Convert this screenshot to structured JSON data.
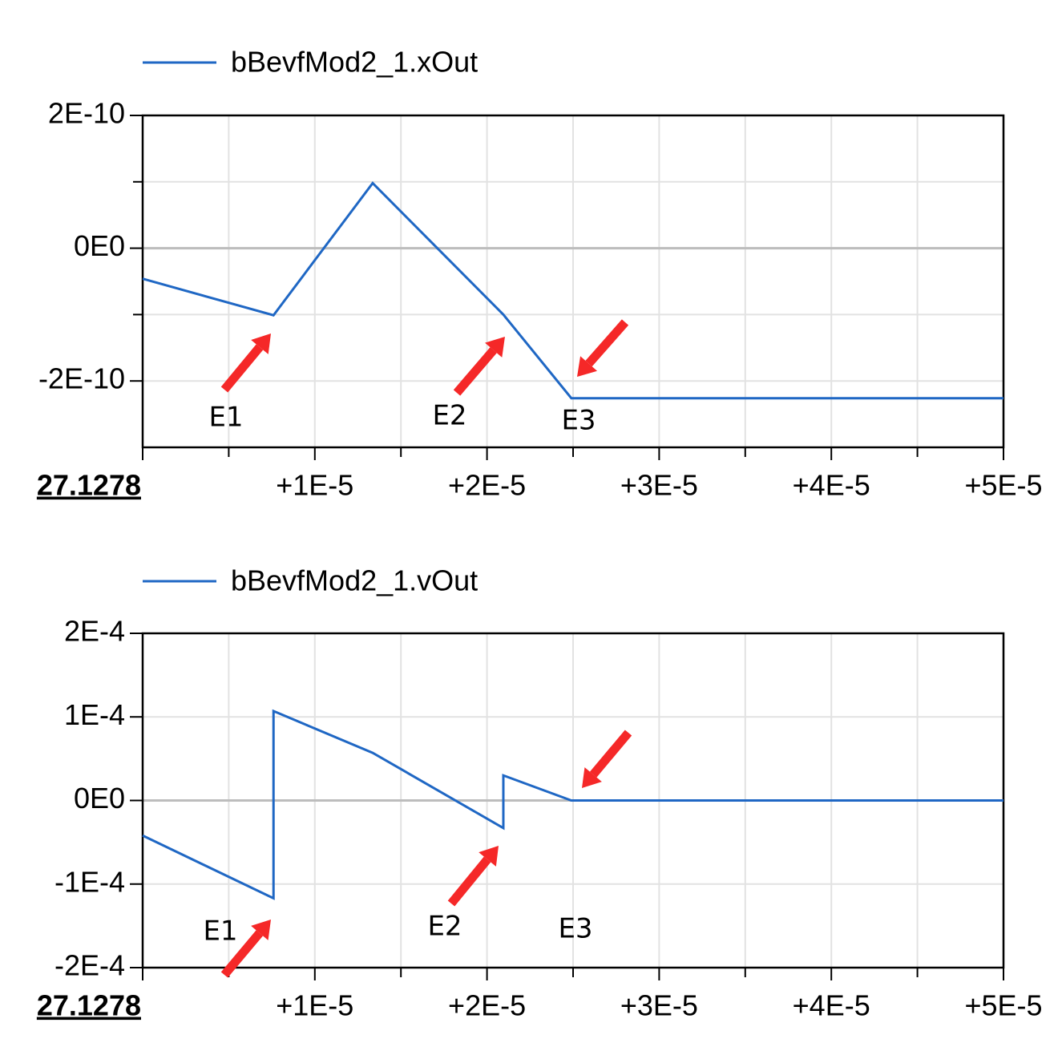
{
  "chart_data": [
    {
      "type": "line",
      "series": [
        {
          "name": "bBevfMod2_1.xOut",
          "color": "#1f67c4",
          "values": [
            -4.6e-11,
            -1.01e-10,
            9.8e-11,
            -1e-10,
            -2.26e-10,
            -2.26e-10
          ]
        }
      ],
      "x": [
        0,
        7.6e-06,
        1.336e-05,
        2.095e-05,
        2.49e-05,
        5e-05
      ],
      "xlim": [
        0,
        5e-05
      ],
      "ylim": [
        -3e-10,
        2e-10
      ],
      "xticks": [
        {
          "value": 0,
          "label": "27.1278"
        },
        {
          "value": 1e-05,
          "label": "+1E-5"
        },
        {
          "value": 2e-05,
          "label": "+2E-5"
        },
        {
          "value": 3e-05,
          "label": "+3E-5"
        },
        {
          "value": 4e-05,
          "label": "+4E-5"
        },
        {
          "value": 5e-05,
          "label": "+5E-5"
        }
      ],
      "yticks": [
        {
          "value": 2e-10,
          "label": "2E-10"
        },
        {
          "value": 0,
          "label": "0E0"
        },
        {
          "value": -2e-10,
          "label": "-2E-10"
        }
      ],
      "x_minor_ticks": [
        5e-06,
        1.5e-05,
        2.5e-05,
        3.5e-05,
        4.5e-05
      ],
      "y_minor_ticks": [
        1e-10,
        -1e-10
      ],
      "grid": true,
      "annotations": [
        "E1",
        "E2",
        "E3"
      ]
    },
    {
      "type": "line",
      "series": [
        {
          "name": "bBevfMod2_1.vOut",
          "color": "#1f67c4",
          "values": [
            -4.2e-05,
            -0.000117,
            0.000107,
            5.7e-05,
            -3.3e-05,
            3e-05,
            0,
            0
          ]
        }
      ],
      "x": [
        0,
        7.6e-06,
        7.6e-06,
        1.336e-05,
        2.095e-05,
        2.095e-05,
        2.49e-05,
        5e-05
      ],
      "xlim": [
        0,
        5e-05
      ],
      "ylim": [
        -0.0002,
        0.0002
      ],
      "xticks": [
        {
          "value": 0,
          "label": "27.1278"
        },
        {
          "value": 1e-05,
          "label": "+1E-5"
        },
        {
          "value": 2e-05,
          "label": "+2E-5"
        },
        {
          "value": 3e-05,
          "label": "+3E-5"
        },
        {
          "value": 4e-05,
          "label": "+4E-5"
        },
        {
          "value": 5e-05,
          "label": "+5E-5"
        }
      ],
      "yticks": [
        {
          "value": 0.0002,
          "label": "2E-4"
        },
        {
          "value": 0.0001,
          "label": "1E-4"
        },
        {
          "value": 0,
          "label": "0E0"
        },
        {
          "value": -0.0001,
          "label": "-1E-4"
        },
        {
          "value": -0.0002,
          "label": "-2E-4"
        }
      ],
      "x_minor_ticks": [
        5e-06,
        1.5e-05,
        2.5e-05,
        3.5e-05,
        4.5e-05
      ],
      "y_minor_ticks": [],
      "grid": true,
      "annotations": [
        "E1",
        "E2",
        "E3"
      ]
    }
  ]
}
